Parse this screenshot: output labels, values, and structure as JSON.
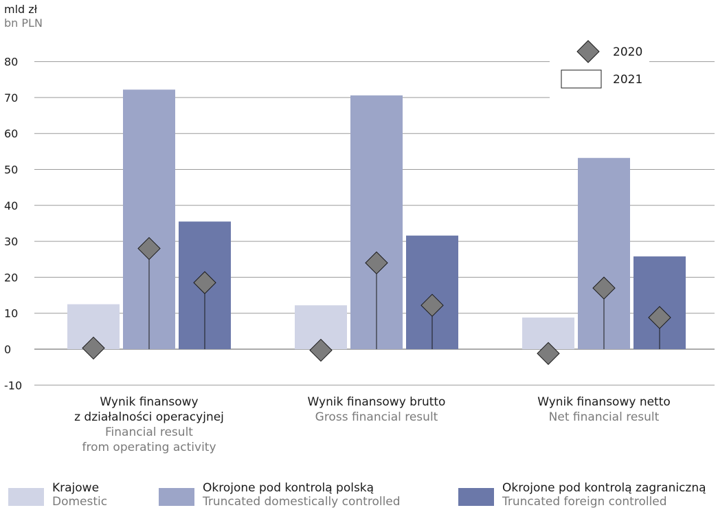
{
  "unit": {
    "pl": "mld zł",
    "en": "bn PLN"
  },
  "chart_data": {
    "type": "bar",
    "categories": [
      {
        "pl": [
          "Wynik finansowy",
          "z działalności operacyjnej"
        ],
        "en": [
          "Financial result",
          "from operating activity"
        ]
      },
      {
        "pl": [
          "Wynik finansowy brutto"
        ],
        "en": [
          "Gross financial result"
        ]
      },
      {
        "pl": [
          "Wynik finansowy netto"
        ],
        "en": [
          "Net financial result"
        ]
      }
    ],
    "series": [
      {
        "name": "Krajowe",
        "name_en": "Domestic",
        "color": "#d0d4e6",
        "values_2021": [
          12.5,
          12.2,
          8.8
        ],
        "values_2020": [
          0.3,
          -0.3,
          -1.2
        ]
      },
      {
        "name": "Okrojone pod kontrolą polską",
        "name_en": "Truncated domestically controlled",
        "color": "#9ca5c8",
        "values_2021": [
          72.2,
          70.6,
          53.2
        ],
        "values_2020": [
          28.0,
          24.0,
          17.0
        ]
      },
      {
        "name": "Okrojone pod kontrolą zagraniczną",
        "name_en": "Truncated foreign controlled",
        "color": "#6b78a9",
        "values_2021": [
          35.5,
          31.6,
          25.8
        ],
        "values_2020": [
          18.5,
          12.2,
          8.8
        ]
      }
    ],
    "marker_legend": [
      {
        "label": "2020",
        "shape": "diamond",
        "color": "#7c7c7c"
      },
      {
        "label": "2021",
        "shape": "bar",
        "color": "#ffffff"
      }
    ],
    "ylim": [
      -10,
      80
    ],
    "yticks": [
      80,
      70,
      60,
      50,
      40,
      30,
      20,
      10,
      0,
      -10
    ],
    "grid": true,
    "legend_position": "top-right"
  }
}
